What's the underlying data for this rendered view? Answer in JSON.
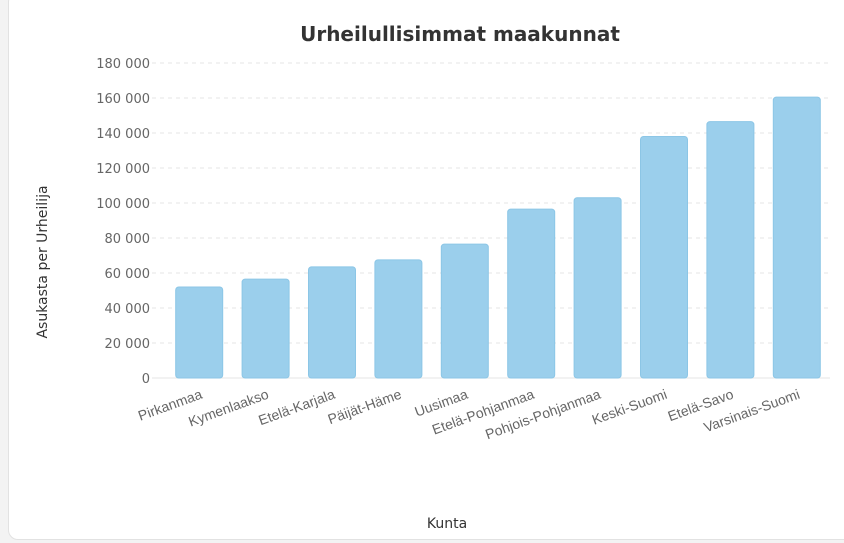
{
  "chart_data": {
    "type": "bar",
    "title": "Urheilullisimmat maakunnat",
    "xlabel": "Kunta",
    "ylabel": "Asukasta per Urheilija",
    "categories": [
      "Pirkanmaa",
      "Kymenlaakso",
      "Etelä-Karjala",
      "Päijät-Häme",
      "Uusimaa",
      "Etelä-Pohjanmaa",
      "Pohjois-Pohjanmaa",
      "Keski-Suomi",
      "Etelä-Savo",
      "Varsinais-Suomi"
    ],
    "values": [
      52000,
      56500,
      63500,
      67500,
      76500,
      96500,
      103000,
      138000,
      146500,
      160500
    ],
    "ylim": [
      0,
      180000
    ],
    "yticks": [
      "0",
      "20 000",
      "40 000",
      "60 000",
      "80 000",
      "100 000",
      "120 000",
      "140 000",
      "160 000",
      "180 000"
    ],
    "grid": true,
    "bar_color": "#9bcfec",
    "bar_border_color": "#8cc6e6"
  }
}
